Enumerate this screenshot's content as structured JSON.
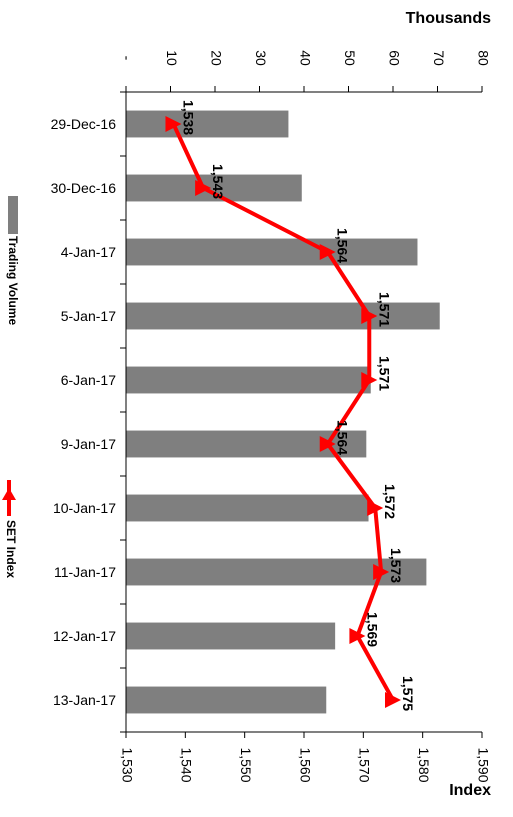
{
  "chart_data": {
    "type": "bar",
    "orientation": "horizontal",
    "categories": [
      "29-Dec-16",
      "30-Dec-16",
      "4-Jan-17",
      "5-Jan-17",
      "6-Jan-17",
      "9-Jan-17",
      "10-Jan-17",
      "11-Jan-17",
      "12-Jan-17",
      "13-Jan-17"
    ],
    "series": [
      {
        "name": "Trading Volume",
        "kind": "bar",
        "axis": "top",
        "color": "#7f7f7f",
        "values": [
          36.5,
          39.5,
          65.5,
          70.5,
          55.0,
          54.0,
          54.5,
          67.5,
          47.0,
          45.0
        ]
      },
      {
        "name": "SET Index",
        "kind": "line",
        "axis": "bottom",
        "color": "#ff0000",
        "values": [
          1538,
          1543,
          1564,
          1571,
          1571,
          1564,
          1572,
          1573,
          1569,
          1575
        ],
        "labels": [
          "1,538",
          "1,543",
          "1,564",
          "1,571",
          "1,571",
          "1,564",
          "1,572",
          "1,573",
          "1,569",
          "1,575"
        ]
      }
    ],
    "top_axis": {
      "label": "Thousands",
      "min": 0,
      "max": 80,
      "ticks": [
        0,
        10,
        20,
        30,
        40,
        50,
        60,
        70,
        80
      ],
      "tick_labels": [
        "-",
        "10",
        "20",
        "30",
        "40",
        "50",
        "60",
        "70",
        "80"
      ]
    },
    "bottom_axis": {
      "label": "Index",
      "min": 1530,
      "max": 1590,
      "ticks": [
        1530,
        1540,
        1550,
        1560,
        1570,
        1580,
        1590
      ],
      "tick_labels": [
        "1,530",
        "1,540",
        "1,550",
        "1,560",
        "1,570",
        "1,580",
        "1,590"
      ]
    },
    "grid": false,
    "legend": {
      "placement": "left",
      "entries": [
        "Trading Volume",
        "SET Index"
      ]
    }
  }
}
